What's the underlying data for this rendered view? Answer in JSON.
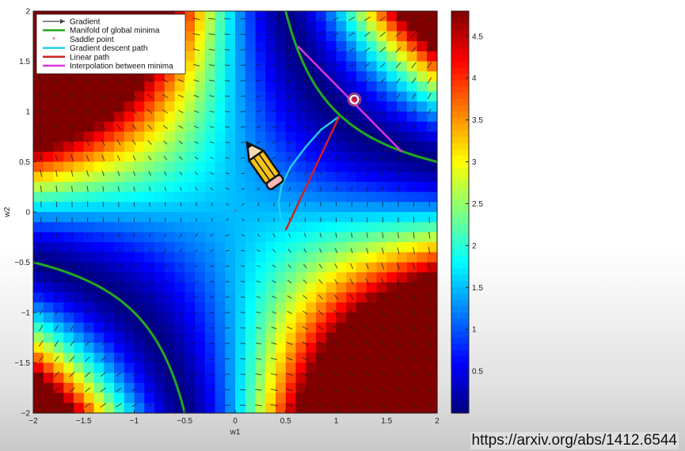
{
  "chart_data": {
    "type": "heatmap",
    "xlabel": "w1",
    "ylabel": "w2",
    "xlim": [
      -2,
      2
    ],
    "ylim": [
      -2,
      2
    ],
    "x_ticks": [
      "-2",
      "-1.5",
      "-1",
      "-0.5",
      "0",
      "0.5",
      "1",
      "1.5",
      "2"
    ],
    "y_ticks": [
      "-2",
      "-1.5",
      "-1",
      "-0.5",
      "0",
      "0.5",
      "1",
      "1.5",
      "2"
    ],
    "colorbar": {
      "range": [
        0,
        4.8
      ],
      "ticks": [
        "0.5",
        "1",
        "1.5",
        "2",
        "2.5",
        "3",
        "3.5",
        "4",
        "4.5"
      ],
      "colormap": "jet"
    },
    "surface": "loss = (1 - w1*w2)^2",
    "grid": false,
    "legend_position": "top-left",
    "legend": [
      {
        "label": "Gradient",
        "kind": "arrow",
        "color": "#444444"
      },
      {
        "label": "Manifold of global minima",
        "kind": "line",
        "color": "#22aa22"
      },
      {
        "label": "Saddle point",
        "kind": "star",
        "color": "#dd3333"
      },
      {
        "label": "Gradient descent path",
        "kind": "line",
        "color": "#22ccee"
      },
      {
        "label": "Linear path",
        "kind": "line",
        "color": "#cc2222"
      },
      {
        "label": "Interpolation between minima",
        "kind": "line",
        "color": "#dd33dd"
      }
    ],
    "saddle_point": {
      "x": 0,
      "y": 0
    },
    "gradient_descent_path": [
      {
        "x": 0.5,
        "y": -0.18
      },
      {
        "x": 0.45,
        "y": -0.05
      },
      {
        "x": 0.43,
        "y": 0.1
      },
      {
        "x": 0.46,
        "y": 0.27
      },
      {
        "x": 0.55,
        "y": 0.45
      },
      {
        "x": 0.7,
        "y": 0.65
      },
      {
        "x": 0.85,
        "y": 0.82
      },
      {
        "x": 1.03,
        "y": 0.95
      }
    ],
    "linear_path": [
      {
        "x": 0.5,
        "y": -0.18
      },
      {
        "x": 1.03,
        "y": 0.95
      }
    ],
    "interpolation_between_minima": [
      {
        "x": 0.62,
        "y": 1.65
      },
      {
        "x": 1.65,
        "y": 0.6
      }
    ],
    "highlight_point": {
      "x": 1.18,
      "y": 1.12
    },
    "colors": {
      "manifold": "#22aa22",
      "gd_path": "#22ccee",
      "linear_path": "#cc2222",
      "interpolation": "#dd33dd",
      "saddle": "#dd3333"
    }
  },
  "source_url": "https://arxiv.org/abs/1412.6544",
  "overlay": {
    "icon": "pencil-icon"
  }
}
